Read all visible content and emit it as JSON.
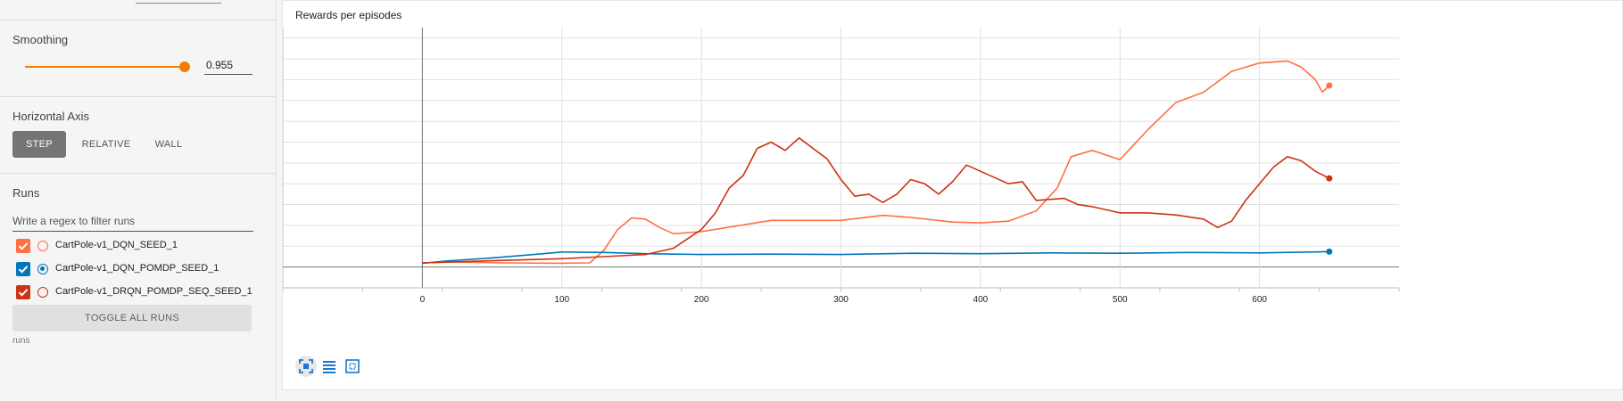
{
  "sidebar": {
    "smoothing": {
      "title": "Smoothing",
      "value": "0.955",
      "level": 0.955
    },
    "horizontal_axis": {
      "title": "Horizontal Axis",
      "options": [
        "STEP",
        "RELATIVE",
        "WALL"
      ],
      "selected": "STEP"
    },
    "runs": {
      "title": "Runs",
      "filter_placeholder": "Write a regex to filter runs",
      "items": [
        {
          "label": "CartPole-v1_DQN_SEED_1",
          "color": "#ff7043",
          "checked": true,
          "radio": false
        },
        {
          "label": "CartPole-v1_DQN_POMDP_SEED_1",
          "color": "#0077bb",
          "checked": true,
          "radio": true
        },
        {
          "label": "CartPole-v1_DRQN_POMDP_SEQ_SEED_1",
          "color": "#cc3311",
          "checked": true,
          "radio": false
        }
      ],
      "toggle_label": "TOGGLE ALL RUNS",
      "footer": "runs"
    }
  },
  "chart": {
    "title": "Rewards per episodes",
    "tools": [
      "fit-domain-icon",
      "toggle-log-icon",
      "select-area-icon"
    ]
  },
  "chart_data": {
    "type": "line",
    "title": "Rewards per episodes",
    "xlabel": "",
    "ylabel": "",
    "xlim": [
      -100,
      700
    ],
    "ylim": [
      -50,
      575
    ],
    "x_ticks": [
      0,
      100,
      200,
      300,
      400,
      500,
      600
    ],
    "y_ticks": [
      0,
      50,
      100,
      150,
      200,
      250,
      300,
      350,
      400,
      450,
      500,
      550
    ],
    "grid": true,
    "series": [
      {
        "name": "CartPole-v1_DQN_SEED_1",
        "color": "#ff7043",
        "x": [
          0,
          20,
          60,
          100,
          120,
          130,
          140,
          150,
          160,
          170,
          180,
          200,
          250,
          300,
          330,
          350,
          380,
          400,
          420,
          440,
          455,
          465,
          480,
          500,
          520,
          540,
          560,
          580,
          600,
          620,
          630,
          640,
          645,
          650
        ],
        "y": [
          10,
          12,
          10,
          9,
          10,
          40,
          90,
          118,
          115,
          95,
          80,
          85,
          112,
          112,
          124,
          119,
          108,
          106,
          110,
          135,
          190,
          265,
          280,
          258,
          330,
          395,
          420,
          470,
          490,
          495,
          480,
          450,
          420,
          436
        ]
      },
      {
        "name": "CartPole-v1_DQN_POMDP_SEED_1",
        "color": "#0077bb",
        "x": [
          0,
          20,
          50,
          80,
          100,
          130,
          160,
          200,
          250,
          300,
          350,
          400,
          450,
          500,
          550,
          600,
          650
        ],
        "y": [
          9,
          15,
          22,
          30,
          36,
          35,
          32,
          30,
          31,
          30,
          33,
          32,
          34,
          33,
          35,
          34,
          37
        ]
      },
      {
        "name": "CartPole-v1_DRQN_POMDP_SEQ_SEED_1",
        "color": "#cc3311",
        "x": [
          0,
          50,
          100,
          130,
          160,
          180,
          200,
          210,
          220,
          230,
          240,
          250,
          260,
          270,
          280,
          290,
          300,
          310,
          320,
          330,
          340,
          350,
          360,
          370,
          380,
          390,
          400,
          410,
          420,
          430,
          440,
          460,
          470,
          480,
          500,
          520,
          540,
          560,
          570,
          580,
          590,
          600,
          610,
          620,
          630,
          640,
          650
        ],
        "y": [
          10,
          15,
          20,
          25,
          30,
          45,
          90,
          130,
          190,
          220,
          285,
          300,
          280,
          310,
          285,
          260,
          210,
          170,
          175,
          155,
          175,
          210,
          200,
          175,
          205,
          245,
          230,
          215,
          200,
          205,
          160,
          165,
          150,
          145,
          130,
          130,
          125,
          115,
          95,
          110,
          160,
          200,
          240,
          265,
          255,
          230,
          213
        ]
      }
    ]
  }
}
